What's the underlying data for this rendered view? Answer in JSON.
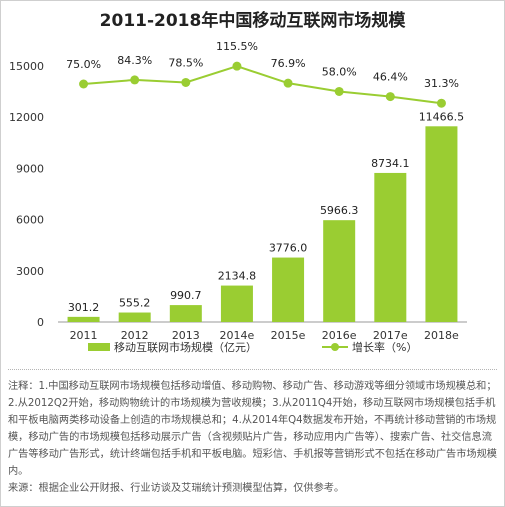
{
  "chart_data": {
    "type": "bar",
    "title": "2011-2018年中国移动互联网市场规模",
    "categories": [
      "2011",
      "2012",
      "2013",
      "2014e",
      "2015e",
      "2016e",
      "2017e",
      "2018e"
    ],
    "series": [
      {
        "name": "移动互联网市场规模（亿元）",
        "type": "bar",
        "values": [
          301.2,
          555.2,
          990.7,
          2134.8,
          3776.0,
          5966.3,
          8734.1,
          11466.5
        ],
        "labels": [
          "301.2",
          "555.2",
          "990.7",
          "2134.8",
          "3776.0",
          "5966.3",
          "8734.1",
          "11466.5"
        ]
      },
      {
        "name": "增长率（%）",
        "type": "line",
        "values": [
          75.0,
          84.3,
          78.5,
          115.5,
          76.9,
          58.0,
          46.4,
          31.3
        ],
        "labels": [
          "75.0%",
          "84.3%",
          "78.5%",
          "115.5%",
          "76.9%",
          "58.0%",
          "46.4%",
          "31.3%"
        ]
      }
    ],
    "y_ticks": [
      "0",
      "3000",
      "6000",
      "9000",
      "12000",
      "15000"
    ],
    "ylim": [
      0,
      15000
    ],
    "legend_position": "bottom",
    "colors": {
      "bar": "#9ACD32",
      "line": "#9ACD32",
      "line_marker": "#9ACD32"
    }
  },
  "notes": [
    "注释：1.中国移动互联网市场规模包括移动增值、移动购物、移动广告、移动游戏等细分领域市场规模总和；2.从2012Q2开始，移动购物统计的市场规模为营收规模；3.从2011Q4开始，移动互联网市场规模包括手机和平板电脑两类移动设备上创造的市场规模总和；4.从2014年Q4数据发布开始，不再统计移动营销的市场规模，移动广告的市场规模包括移动展示广告（含视频贴片广告，移动应用内广告等）、搜索广告、社交信息流广告等移动广告形式，统计终端包括手机和平板电脑。短彩信、手机报等营销形式不包括在移动广告市场规模内。",
    "来源：根据企业公开财报、行业访谈及艾瑞统计预测模型估算，仅供参考。"
  ]
}
